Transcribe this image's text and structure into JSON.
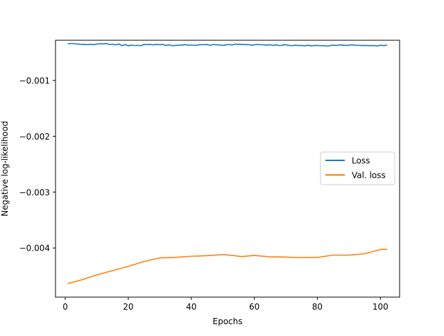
{
  "chart_data": {
    "type": "line",
    "title": "",
    "xlabel": "Epochs",
    "ylabel": "Negative log-likelihood",
    "xlim": [
      -3.1,
      106.1
    ],
    "ylim": [
      -0.00488,
      -0.00028
    ],
    "xticks": [
      0,
      20,
      40,
      60,
      80,
      100
    ],
    "xtick_labels": [
      "0",
      "20",
      "40",
      "60",
      "80",
      "100"
    ],
    "yticks": [
      -0.001,
      -0.002,
      -0.003,
      -0.004
    ],
    "ytick_labels": [
      "−0.001",
      "−0.002",
      "−0.003",
      "−0.004"
    ],
    "grid": false,
    "legend": {
      "position": "center-right"
    },
    "series": [
      {
        "name": "Loss",
        "color": "#1f77b4",
        "x": [
          1,
          2,
          3,
          4,
          5,
          6,
          7,
          8,
          9,
          10,
          11,
          12,
          13,
          14,
          15,
          16,
          17,
          18,
          19,
          20,
          21,
          22,
          23,
          24,
          25,
          26,
          27,
          28,
          29,
          30,
          31,
          32,
          33,
          34,
          35,
          36,
          37,
          38,
          39,
          40,
          41,
          42,
          43,
          44,
          45,
          46,
          47,
          48,
          49,
          50,
          51,
          52,
          53,
          54,
          55,
          56,
          57,
          58,
          59,
          60,
          61,
          62,
          63,
          64,
          65,
          66,
          67,
          68,
          69,
          70,
          71,
          72,
          73,
          74,
          75,
          76,
          77,
          78,
          79,
          80,
          81,
          82,
          83,
          84,
          85,
          86,
          87,
          88,
          89,
          90,
          91,
          92,
          93,
          94,
          95,
          96,
          97,
          98,
          99,
          100,
          101,
          102
        ],
        "y": [
          -0.000342,
          -0.000336,
          -0.000342,
          -0.000348,
          -0.000356,
          -0.000352,
          -0.000358,
          -0.000352,
          -0.00036,
          -0.000348,
          -0.000342,
          -0.000345,
          -0.000338,
          -0.000356,
          -0.00035,
          -0.000364,
          -0.000346,
          -0.000378,
          -0.000356,
          -0.00038,
          -0.000366,
          -0.000375,
          -0.00037,
          -0.000378,
          -0.000355,
          -0.000358,
          -0.000355,
          -0.000362,
          -0.000355,
          -0.00036,
          -0.000356,
          -0.000374,
          -0.000362,
          -0.000378,
          -0.000372,
          -0.000368,
          -0.000366,
          -0.00036,
          -0.000368,
          -0.000364,
          -0.00037,
          -0.000366,
          -0.000358,
          -0.00036,
          -0.000356,
          -0.00037,
          -0.000356,
          -0.000362,
          -0.000365,
          -0.000372,
          -0.000362,
          -0.000356,
          -0.000366,
          -0.000348,
          -0.000354,
          -0.000352,
          -0.00036,
          -0.000356,
          -0.000368,
          -0.000362,
          -0.000356,
          -0.00036,
          -0.000362,
          -0.000368,
          -0.00036,
          -0.000372,
          -0.000362,
          -0.000375,
          -0.000368,
          -0.00036,
          -0.000372,
          -0.000378,
          -0.000368,
          -0.000374,
          -0.000372,
          -0.00038,
          -0.000368,
          -0.000382,
          -0.000374,
          -0.000372,
          -0.000378,
          -0.000376,
          -0.000384,
          -0.000376,
          -0.000366,
          -0.000374,
          -0.000362,
          -0.000366,
          -0.000372,
          -0.000368,
          -0.000362,
          -0.00037,
          -0.00037,
          -0.000374,
          -0.000372,
          -0.000376,
          -0.000374,
          -0.000376,
          -0.000384,
          -0.000368,
          -0.000376,
          -0.000368
        ]
      },
      {
        "name": "Val. loss",
        "color": "#ff7f0e",
        "x": [
          1,
          5,
          10,
          15,
          20,
          25,
          30,
          35,
          40,
          45,
          50,
          53,
          56,
          60,
          65,
          70,
          75,
          80,
          85,
          90,
          95,
          100,
          102
        ],
        "y": [
          -0.004633,
          -0.004574,
          -0.004482,
          -0.004406,
          -0.004328,
          -0.004243,
          -0.004178,
          -0.004168,
          -0.004148,
          -0.004138,
          -0.004118,
          -0.004133,
          -0.004153,
          -0.004133,
          -0.004158,
          -0.004163,
          -0.004173,
          -0.004168,
          -0.004128,
          -0.004128,
          -0.004103,
          -0.004028,
          -0.004023
        ]
      }
    ]
  }
}
